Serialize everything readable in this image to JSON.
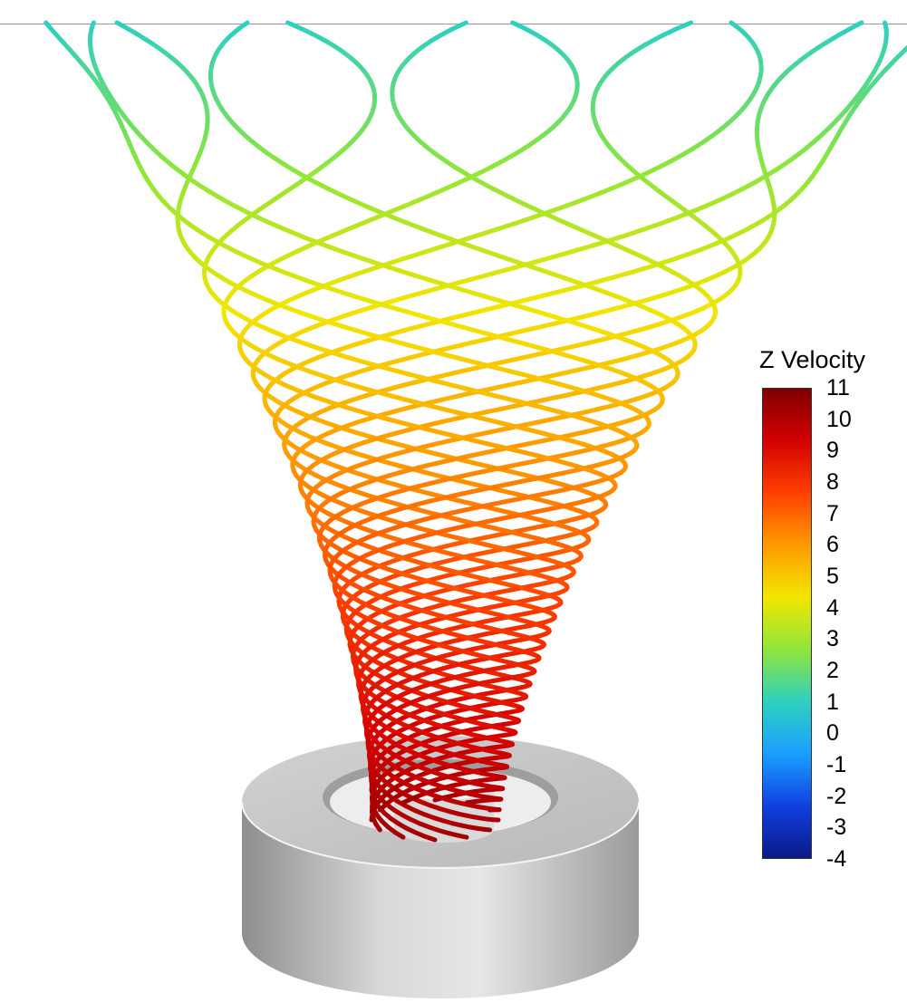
{
  "legend": {
    "title": "Z Velocity",
    "labels": [
      "11",
      "10",
      "9",
      "8",
      "7",
      "6",
      "5",
      "4",
      "3",
      "2",
      "1",
      "0",
      "-1",
      "-2",
      "-3",
      "-4"
    ],
    "min": -4,
    "max": 11
  },
  "colormap": {
    "stops": [
      "#7f0000",
      "#d40000",
      "#ff4000",
      "#ff9a00",
      "#f2e600",
      "#8fe63a",
      "#2fd0c0",
      "#1aa0ff",
      "#1040e0",
      "#0a1a8a"
    ]
  },
  "scene": {
    "streamline_count": 12,
    "body_color": "#c8c8c8",
    "description_shape": "cylinder-ring"
  }
}
